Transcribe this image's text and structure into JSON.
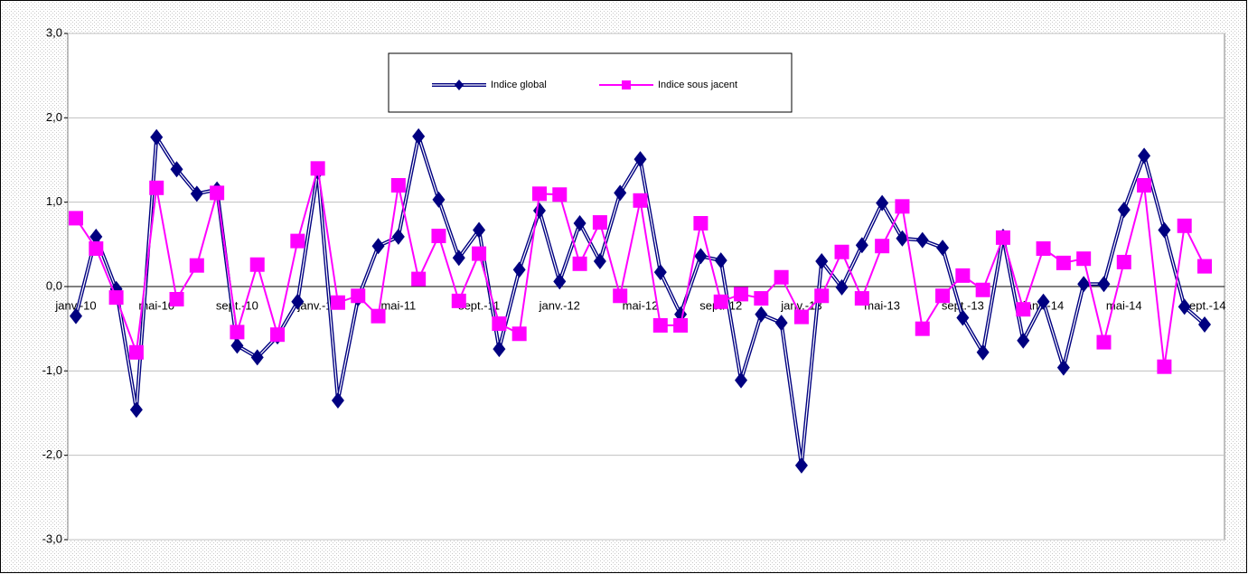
{
  "chart_data": {
    "type": "line",
    "categories": [
      "janv.-10",
      null,
      null,
      null,
      "mai-10",
      null,
      null,
      null,
      "sept.-10",
      null,
      null,
      null,
      "janv.-11",
      null,
      null,
      null,
      "mai-11",
      null,
      null,
      null,
      "sept.-11",
      null,
      null,
      null,
      "janv.-12",
      null,
      null,
      null,
      "mai-12",
      null,
      null,
      null,
      "sept.-12",
      null,
      null,
      null,
      "janv.-13",
      null,
      null,
      null,
      "mai-13",
      null,
      null,
      null,
      "sept.-13",
      null,
      null,
      null,
      "janv.-14",
      null,
      null,
      null,
      "mai-14",
      null,
      null,
      null,
      "sept.-14"
    ],
    "series": [
      {
        "name": "Indice global",
        "color": "#000080",
        "marker": "diamond",
        "values": [
          -0.35,
          0.59,
          -0.03,
          -1.46,
          1.77,
          1.39,
          1.1,
          1.15,
          -0.7,
          -0.84,
          -0.59,
          -0.18,
          1.36,
          -1.35,
          -0.14,
          0.48,
          0.59,
          1.78,
          1.03,
          0.34,
          0.67,
          -0.74,
          0.2,
          0.9,
          0.06,
          0.75,
          0.3,
          1.11,
          1.51,
          0.17,
          -0.33,
          0.36,
          0.31,
          -1.11,
          -0.33,
          -0.43,
          -2.12,
          0.3,
          -0.01,
          0.49,
          0.99,
          0.57,
          0.55,
          0.46,
          -0.37,
          -0.78,
          0.59,
          -0.64,
          -0.18,
          -0.96,
          0.03,
          0.03,
          0.91,
          1.55,
          0.67,
          -0.24,
          -0.45
        ]
      },
      {
        "name": "Indice sous jacent",
        "color": "#FF00FF",
        "marker": "square",
        "values": [
          0.81,
          0.45,
          -0.13,
          -0.78,
          1.17,
          -0.15,
          0.25,
          1.11,
          -0.54,
          0.26,
          -0.57,
          0.54,
          1.4,
          -0.19,
          -0.11,
          -0.35,
          1.2,
          0.09,
          0.6,
          -0.17,
          0.39,
          -0.44,
          -0.56,
          1.1,
          1.09,
          0.27,
          0.76,
          -0.11,
          1.02,
          -0.46,
          -0.46,
          0.75,
          -0.18,
          -0.09,
          -0.14,
          0.11,
          -0.36,
          -0.11,
          0.41,
          -0.14,
          0.48,
          0.95,
          -0.5,
          -0.11,
          0.13,
          -0.04,
          0.58,
          -0.27,
          0.45,
          0.28,
          0.33,
          -0.66,
          0.29,
          1.2,
          -0.95,
          0.72,
          0.24
        ]
      }
    ],
    "ylim": [
      -3,
      3
    ],
    "yticks": [
      {
        "value": -3,
        "label": "-3,0"
      },
      {
        "value": -2,
        "label": "-2,0"
      },
      {
        "value": -1,
        "label": "-1,0"
      },
      {
        "value": 0,
        "label": "0,0"
      },
      {
        "value": 1,
        "label": "1,0"
      },
      {
        "value": 2,
        "label": "2,0"
      },
      {
        "value": 3,
        "label": "3,0"
      }
    ],
    "grid": true,
    "legend": "top"
  }
}
